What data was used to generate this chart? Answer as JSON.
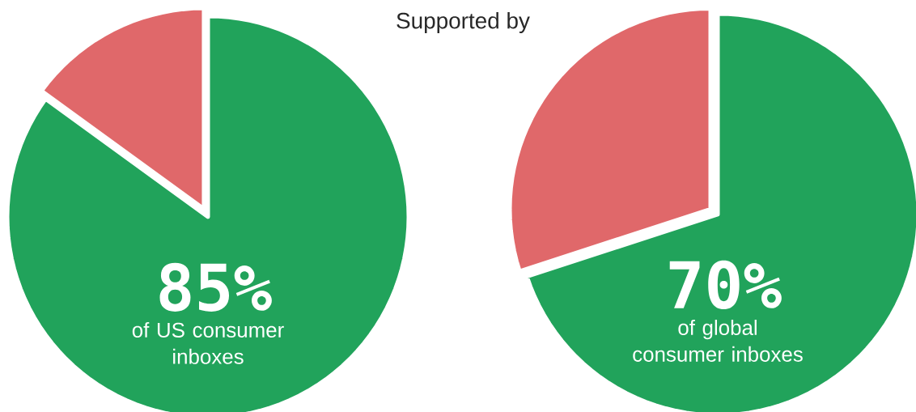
{
  "chart_data": [
    {
      "type": "pie",
      "title": "Supported by",
      "categories": [
        null,
        null
      ],
      "values": [
        85,
        15
      ],
      "colors": [
        "#21a35b",
        "#e0686a"
      ],
      "value_labels": [
        "85%",
        null
      ],
      "annotations": [
        "of US consumer inboxes"
      ]
    },
    {
      "type": "pie",
      "categories": [
        null,
        null
      ],
      "values": [
        70,
        30
      ],
      "colors": [
        "#21a35b",
        "#e0686a"
      ],
      "value_labels": [
        "70%",
        null
      ],
      "annotations": [
        "of global consumer inboxes"
      ]
    }
  ]
}
